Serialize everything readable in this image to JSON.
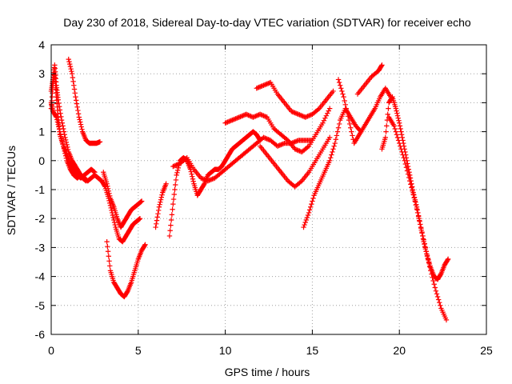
{
  "chart_data": {
    "type": "scatter",
    "title": "Day 230 of 2018, Sidereal Day-to-day VTEC variation (SDTVAR) for receiver echo",
    "xlabel": "GPS time / hours",
    "ylabel": "SDTVAR / TECUs",
    "xlim": [
      0,
      25
    ],
    "ylim": [
      -6,
      4
    ],
    "xticks": [
      "0",
      "5",
      "10",
      "15",
      "20",
      "25"
    ],
    "yticks": [
      "-6",
      "-5",
      "-4",
      "-3",
      "-2",
      "-1",
      "0",
      "1",
      "2",
      "3",
      "4"
    ],
    "grid": true,
    "marker": "+",
    "color": "#ff0000",
    "series": [
      {
        "x": [
          0.0,
          0.1,
          0.2,
          0.3,
          0.4,
          0.5,
          0.7,
          0.9,
          1.1,
          1.3,
          1.5,
          1.7,
          1.9,
          2.1,
          2.3,
          2.5
        ],
        "y": [
          1.8,
          2.6,
          3.0,
          2.2,
          1.5,
          0.9,
          0.5,
          0.2,
          -0.1,
          -0.3,
          -0.5,
          -0.6,
          -0.5,
          -0.4,
          -0.3,
          -0.4
        ]
      },
      {
        "x": [
          0.0,
          0.1,
          0.2,
          0.3,
          0.4,
          0.6,
          0.8,
          1.0,
          1.2,
          1.4,
          1.6,
          1.8,
          2.0
        ],
        "y": [
          2.4,
          2.8,
          3.3,
          2.6,
          2.1,
          1.4,
          0.8,
          0.3,
          0.0,
          -0.2,
          -0.4,
          -0.6,
          -0.7
        ]
      },
      {
        "x": [
          0.0,
          0.1,
          0.3,
          0.5,
          0.7,
          0.9,
          1.1,
          1.3,
          1.5,
          1.7,
          1.9,
          2.1,
          2.3,
          2.5,
          2.7,
          2.9,
          3.1,
          3.3,
          3.5,
          3.7,
          3.9,
          4.1,
          4.3,
          4.5,
          4.7,
          4.9,
          5.1
        ],
        "y": [
          2.0,
          1.7,
          1.5,
          1.0,
          0.5,
          0.0,
          -0.3,
          -0.5,
          -0.6,
          -0.5,
          -0.6,
          -0.7,
          -0.6,
          -0.5,
          -0.6,
          -0.7,
          -0.9,
          -1.3,
          -1.8,
          -2.3,
          -2.7,
          -2.8,
          -2.6,
          -2.4,
          -2.2,
          -2.1,
          -2.0
        ]
      },
      {
        "x": [
          1.0,
          1.2,
          1.4,
          1.6,
          1.8,
          2.0,
          2.2,
          2.4,
          2.6,
          2.8
        ],
        "y": [
          3.5,
          3.0,
          2.2,
          1.5,
          1.0,
          0.7,
          0.6,
          0.6,
          0.6,
          0.65
        ]
      },
      {
        "x": [
          3.0,
          3.2,
          3.4,
          3.6,
          3.8,
          4.0,
          4.2,
          4.4,
          4.6,
          4.8,
          5.0,
          5.2
        ],
        "y": [
          -0.4,
          -0.8,
          -1.3,
          -1.6,
          -2.0,
          -2.3,
          -2.1,
          -1.9,
          -1.7,
          -1.6,
          -1.5,
          -1.4
        ]
      },
      {
        "x": [
          3.2,
          3.4,
          3.6,
          3.8,
          4.0,
          4.2,
          4.4,
          4.6,
          4.8,
          5.0,
          5.2,
          5.4
        ],
        "y": [
          -2.8,
          -3.8,
          -4.2,
          -4.4,
          -4.6,
          -4.7,
          -4.5,
          -4.2,
          -3.8,
          -3.4,
          -3.1,
          -2.9
        ]
      },
      {
        "x": [
          6.0,
          6.2,
          6.4,
          6.6
        ],
        "y": [
          -2.3,
          -1.6,
          -1.1,
          -0.8
        ]
      },
      {
        "x": [
          6.8,
          7.0,
          7.2,
          7.4,
          7.6,
          7.8,
          8.0,
          8.2,
          8.4,
          8.6,
          8.8,
          9.0,
          9.2,
          9.4,
          9.6,
          9.8,
          10.0,
          10.2,
          10.4,
          10.6,
          10.8,
          11.0,
          11.2,
          11.4,
          11.6,
          11.8,
          12.0
        ],
        "y": [
          -2.6,
          -1.5,
          -0.5,
          0.0,
          0.1,
          0.0,
          -0.3,
          -0.8,
          -1.2,
          -1.0,
          -0.8,
          -0.5,
          -0.4,
          -0.3,
          -0.3,
          -0.2,
          0.0,
          0.2,
          0.4,
          0.5,
          0.6,
          0.7,
          0.8,
          0.9,
          1.0,
          0.9,
          0.7
        ]
      },
      {
        "x": [
          7.0,
          7.4,
          7.8,
          8.2,
          8.6,
          9.0,
          9.4,
          9.8,
          10.2,
          10.6,
          11.0,
          11.4,
          11.8,
          12.2,
          12.6,
          13.0,
          13.4,
          13.8,
          14.2,
          14.6,
          15.0
        ],
        "y": [
          -0.2,
          -0.1,
          0.1,
          -0.3,
          -0.6,
          -0.7,
          -0.6,
          -0.4,
          -0.2,
          0.0,
          0.2,
          0.4,
          0.6,
          0.8,
          0.7,
          0.5,
          0.6,
          0.6,
          0.7,
          0.7,
          0.7
        ]
      },
      {
        "x": [
          10.0,
          10.4,
          10.8,
          11.2,
          11.6,
          12.0,
          12.4,
          12.8,
          13.2,
          13.6,
          14.0,
          14.4,
          14.8,
          15.2,
          15.6,
          16.0
        ],
        "y": [
          1.3,
          1.4,
          1.5,
          1.6,
          1.5,
          1.6,
          1.5,
          1.1,
          0.9,
          0.7,
          0.4,
          0.3,
          0.5,
          0.9,
          1.3,
          1.8
        ]
      },
      {
        "x": [
          11.8,
          12.2,
          12.6,
          13.0,
          13.4,
          13.8,
          14.2,
          14.6,
          15.0,
          15.4,
          15.8,
          16.2
        ],
        "y": [
          2.5,
          2.6,
          2.7,
          2.3,
          2.0,
          1.7,
          1.6,
          1.5,
          1.6,
          1.8,
          2.1,
          2.4
        ]
      },
      {
        "x": [
          12.0,
          12.4,
          12.8,
          13.2,
          13.6,
          14.0,
          14.4,
          14.8,
          15.2,
          15.6,
          16.0
        ],
        "y": [
          0.5,
          0.2,
          -0.1,
          -0.4,
          -0.7,
          -0.9,
          -0.7,
          -0.4,
          0.0,
          0.4,
          0.8
        ]
      },
      {
        "x": [
          14.5,
          14.8,
          15.1,
          15.4,
          15.7,
          16.0,
          16.3,
          16.6,
          16.9,
          17.2,
          17.5,
          17.8
        ],
        "y": [
          -2.3,
          -1.8,
          -1.2,
          -0.8,
          -0.4,
          0.0,
          0.6,
          1.4,
          1.8,
          1.5,
          1.2,
          1.0
        ]
      },
      {
        "x": [
          16.5,
          16.8,
          17.1,
          17.4,
          17.7,
          18.0,
          18.3,
          18.6,
          18.9,
          19.2,
          19.5
        ],
        "y": [
          2.8,
          2.2,
          1.4,
          0.6,
          0.9,
          1.2,
          1.5,
          1.8,
          2.2,
          2.5,
          2.2
        ]
      },
      {
        "x": [
          17.6,
          18.0,
          18.4,
          18.8,
          19.0
        ],
        "y": [
          2.3,
          2.6,
          2.9,
          3.1,
          3.3
        ]
      },
      {
        "x": [
          19.0,
          19.2,
          19.4,
          19.6,
          19.8,
          20.0,
          20.2,
          20.4,
          20.6,
          20.8,
          21.0,
          21.2,
          21.4,
          21.6,
          21.8,
          22.0,
          22.2,
          22.4,
          22.6,
          22.8
        ],
        "y": [
          0.4,
          0.8,
          2.0,
          2.2,
          1.8,
          1.3,
          0.7,
          0.1,
          -0.5,
          -1.1,
          -1.6,
          -2.2,
          -2.8,
          -3.3,
          -3.7,
          -4.0,
          -4.1,
          -3.9,
          -3.6,
          -3.4
        ]
      },
      {
        "x": [
          19.4,
          19.7,
          20.0,
          20.3,
          20.6,
          20.9,
          21.2,
          21.5,
          21.8,
          22.1,
          22.4,
          22.7
        ],
        "y": [
          1.5,
          1.2,
          0.6,
          0.0,
          -0.7,
          -1.4,
          -2.2,
          -3.0,
          -3.8,
          -4.5,
          -5.1,
          -5.5
        ]
      }
    ]
  }
}
